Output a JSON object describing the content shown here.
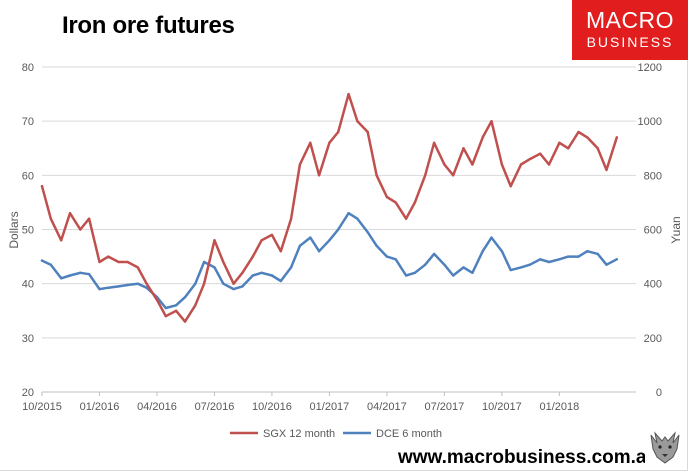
{
  "header": {
    "title": "Iron ore futures"
  },
  "logo": {
    "line1": "MACRO",
    "line2": "BUSINESS"
  },
  "footer": {
    "url": "www.macrobusiness.com.au"
  },
  "colors": {
    "sgx": "#c0504d",
    "dce": "#4f81bd",
    "logo_bg": "#e11d1d"
  },
  "chart_data": {
    "type": "line",
    "title": "Iron ore futures",
    "ylabel": "Dollars",
    "y2label": "Yuan",
    "ylim": [
      20,
      80
    ],
    "y2lim": [
      0,
      1200
    ],
    "yticks": [
      "20",
      "30",
      "40",
      "50",
      "60",
      "70",
      "80"
    ],
    "y2ticks": [
      "0",
      "200",
      "400",
      "600",
      "800",
      "1000",
      "1200"
    ],
    "xlim": [
      "2015-10",
      "2018-05"
    ],
    "xticks": [
      "10/2015",
      "01/2016",
      "04/2016",
      "07/2016",
      "10/2016",
      "01/2017",
      "04/2017",
      "07/2017",
      "10/2017",
      "01/2018"
    ],
    "grid": true,
    "legend_position": "bottom",
    "series": [
      {
        "name": "SGX 12 month",
        "axis": "left",
        "color": "#c0504d",
        "x": [
          "2015-10-01",
          "2015-10-15",
          "2015-11-01",
          "2015-11-15",
          "2015-12-01",
          "2015-12-15",
          "2016-01-01",
          "2016-01-15",
          "2016-02-01",
          "2016-02-15",
          "2016-03-01",
          "2016-03-15",
          "2016-04-01",
          "2016-04-15",
          "2016-05-01",
          "2016-05-15",
          "2016-06-01",
          "2016-06-15",
          "2016-07-01",
          "2016-07-15",
          "2016-08-01",
          "2016-08-15",
          "2016-09-01",
          "2016-09-15",
          "2016-10-01",
          "2016-10-15",
          "2016-11-01",
          "2016-11-15",
          "2016-12-01",
          "2016-12-15",
          "2017-01-01",
          "2017-01-15",
          "2017-02-01",
          "2017-02-15",
          "2017-03-01",
          "2017-03-15",
          "2017-04-01",
          "2017-04-15",
          "2017-05-01",
          "2017-05-15",
          "2017-06-01",
          "2017-06-15",
          "2017-07-01",
          "2017-07-15",
          "2017-08-01",
          "2017-08-15",
          "2017-09-01",
          "2017-09-15",
          "2017-10-01",
          "2017-10-15",
          "2017-11-01",
          "2017-11-15",
          "2017-12-01",
          "2017-12-15",
          "2018-01-01",
          "2018-01-15",
          "2018-02-01",
          "2018-02-15",
          "2018-03-01",
          "2018-03-15",
          "2018-04-01"
        ],
        "values": [
          58,
          52,
          48,
          53,
          50,
          52,
          44,
          45,
          44,
          44,
          43,
          40,
          37,
          34,
          35,
          33,
          36,
          40,
          48,
          44,
          40,
          42,
          45,
          48,
          49,
          46,
          52,
          62,
          66,
          60,
          66,
          68,
          75,
          70,
          68,
          60,
          56,
          55,
          52,
          55,
          60,
          66,
          62,
          60,
          65,
          62,
          67,
          70,
          62,
          58,
          62,
          63,
          64,
          62,
          66,
          65,
          68,
          67,
          65,
          61,
          67
        ]
      },
      {
        "name": "DCE 6 month",
        "axis": "right",
        "color": "#4f81bd",
        "x": [
          "2015-10-01",
          "2015-10-15",
          "2015-11-01",
          "2015-11-15",
          "2015-12-01",
          "2015-12-15",
          "2016-01-01",
          "2016-01-15",
          "2016-02-01",
          "2016-02-15",
          "2016-03-01",
          "2016-03-15",
          "2016-04-01",
          "2016-04-15",
          "2016-05-01",
          "2016-05-15",
          "2016-06-01",
          "2016-06-15",
          "2016-07-01",
          "2016-07-15",
          "2016-08-01",
          "2016-08-15",
          "2016-09-01",
          "2016-09-15",
          "2016-10-01",
          "2016-10-15",
          "2016-11-01",
          "2016-11-15",
          "2016-12-01",
          "2016-12-15",
          "2017-01-01",
          "2017-01-15",
          "2017-02-01",
          "2017-02-15",
          "2017-03-01",
          "2017-03-15",
          "2017-04-01",
          "2017-04-15",
          "2017-05-01",
          "2017-05-15",
          "2017-06-01",
          "2017-06-15",
          "2017-07-01",
          "2017-07-15",
          "2017-08-01",
          "2017-08-15",
          "2017-09-01",
          "2017-09-15",
          "2017-10-01",
          "2017-10-15",
          "2017-11-01",
          "2017-11-15",
          "2017-12-01",
          "2017-12-15",
          "2018-01-01",
          "2018-01-15",
          "2018-02-01",
          "2018-02-15",
          "2018-03-01",
          "2018-03-15",
          "2018-04-01"
        ],
        "values": [
          485,
          470,
          420,
          430,
          440,
          435,
          380,
          385,
          390,
          395,
          400,
          385,
          350,
          310,
          320,
          350,
          400,
          480,
          460,
          400,
          380,
          390,
          430,
          440,
          430,
          410,
          460,
          540,
          570,
          520,
          560,
          600,
          660,
          640,
          590,
          540,
          500,
          490,
          430,
          440,
          470,
          510,
          470,
          430,
          460,
          440,
          520,
          570,
          520,
          450,
          460,
          470,
          490,
          480,
          490,
          500,
          500,
          520,
          510,
          470,
          490
        ]
      }
    ]
  }
}
